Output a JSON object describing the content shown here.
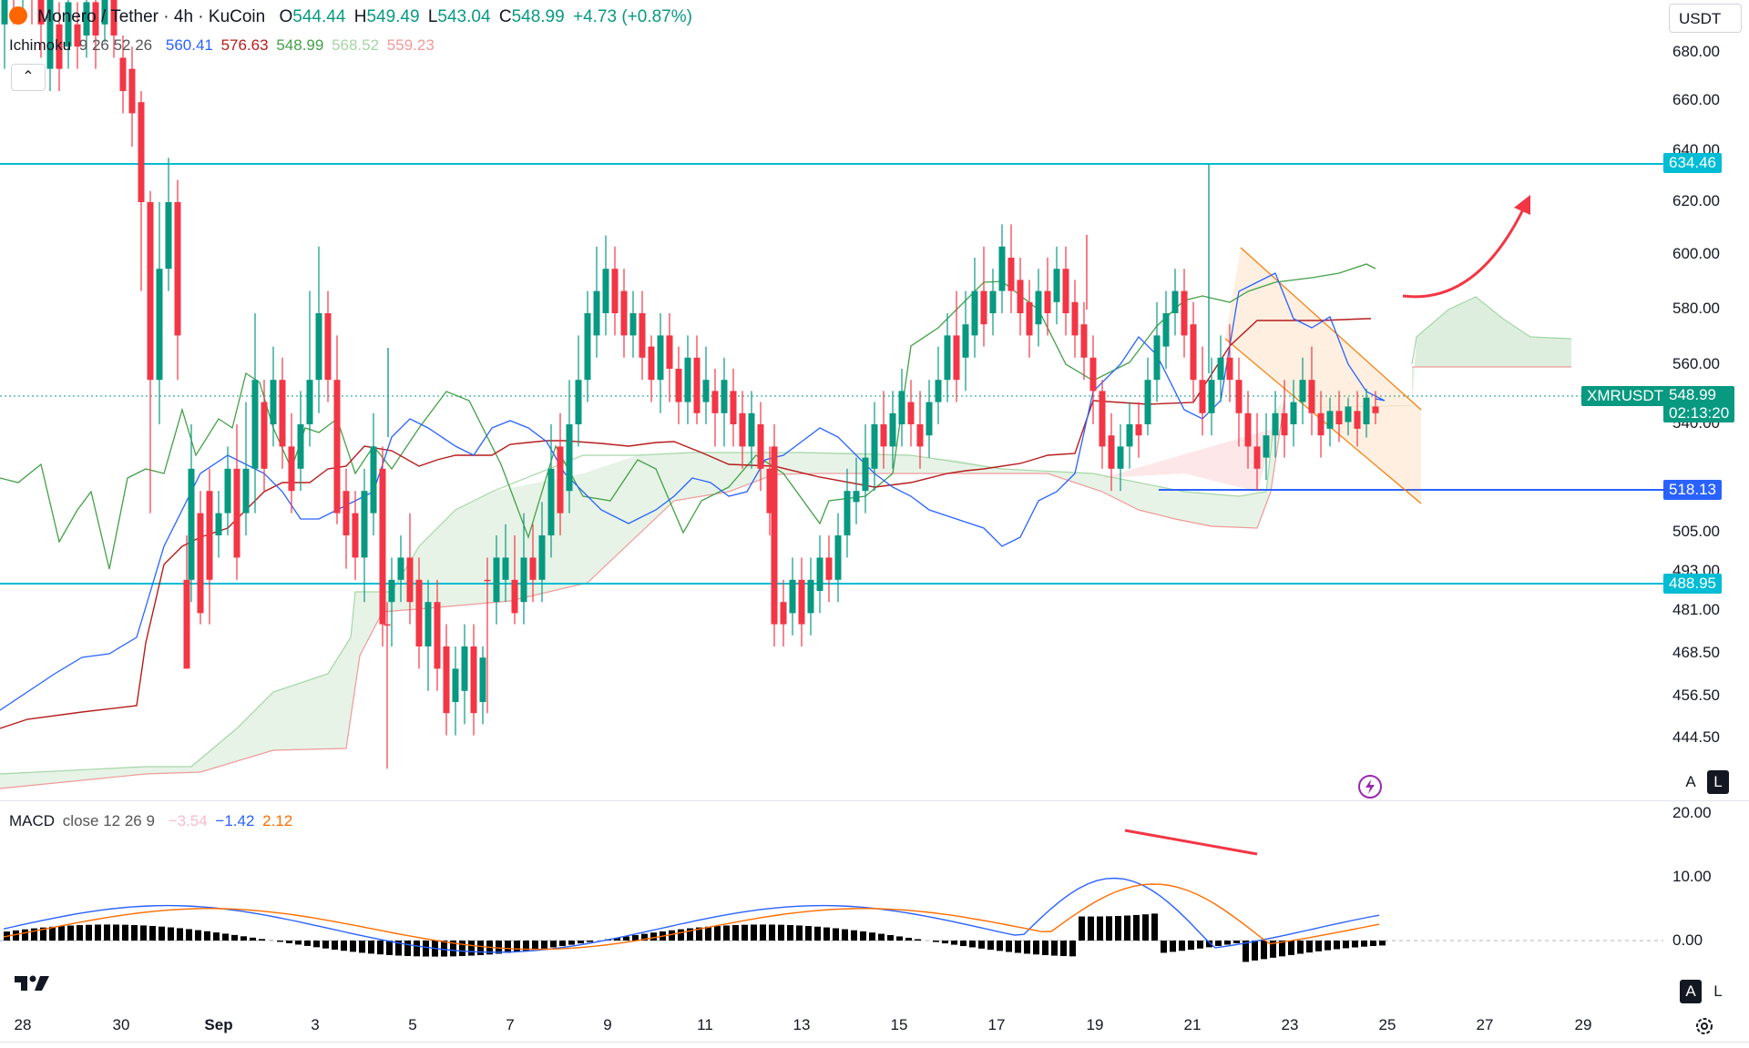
{
  "header": {
    "symbol_title": "Monero / Tether · 4h · KuCoin",
    "ohlc": [
      {
        "k": "O",
        "v": "544.44"
      },
      {
        "k": "H",
        "v": "549.49"
      },
      {
        "k": "L",
        "v": "543.04"
      },
      {
        "k": "C",
        "v": "548.99"
      }
    ],
    "change": "+4.73 (+0.87%)",
    "currency": "USDT",
    "collapse_icon": "chevron-up-icon"
  },
  "ichimoku": {
    "label": "Ichimoku",
    "params": "9 26 52 26",
    "values": [
      {
        "v": "560.41",
        "color": "#2962ff"
      },
      {
        "v": "576.63",
        "color": "#b71c1c"
      },
      {
        "v": "548.99",
        "color": "#43a047"
      },
      {
        "v": "568.52",
        "color": "#a5d6a7"
      },
      {
        "v": "559.23",
        "color": "#ef9a9a"
      }
    ]
  },
  "macd": {
    "label": "MACD",
    "params": "close 12 26 9",
    "values": [
      {
        "v": "−3.54",
        "color": "#f8bbd0"
      },
      {
        "v": "−1.42",
        "color": "#2962ff"
      },
      {
        "v": "2.12",
        "color": "#ff6d00"
      }
    ]
  },
  "price_axis": [
    "680.00",
    "660.00",
    "640.00",
    "620.00",
    "600.00",
    "580.00",
    "560.00",
    "540.00",
    "518.13",
    "505.00",
    "493.00",
    "481.00",
    "468.50",
    "456.50",
    "444.50"
  ],
  "price_tags": {
    "resistance": "634.46",
    "support_mid": "518.13",
    "support_low": "488.95",
    "symbol": "XMRUSDT",
    "last_price": "548.99",
    "countdown": "02:13:20"
  },
  "macd_axis": [
    "20.00",
    "10.00",
    "0.00"
  ],
  "time_axis": [
    "28",
    "30",
    "Sep",
    "3",
    "5",
    "7",
    "9",
    "11",
    "13",
    "15",
    "17",
    "19",
    "21",
    "23",
    "25",
    "27",
    "29"
  ],
  "buttons": {
    "auto": "A",
    "log": "L"
  },
  "icons": {
    "logo": "tradingview-logo-icon",
    "settings": "gear-icon",
    "lightning": "lightning-icon"
  },
  "colors": {
    "up": "#089981",
    "down": "#f23645",
    "level_line": "#00bcd4",
    "tenkan": "#2962ff",
    "kijun": "#b71c1c",
    "chikou": "#43a047",
    "macd_line": "#2962ff",
    "signal_line": "#ff6d00",
    "arrow": "#f23645",
    "channel": "#f57c00",
    "support_blue": "#2962ff"
  }
}
